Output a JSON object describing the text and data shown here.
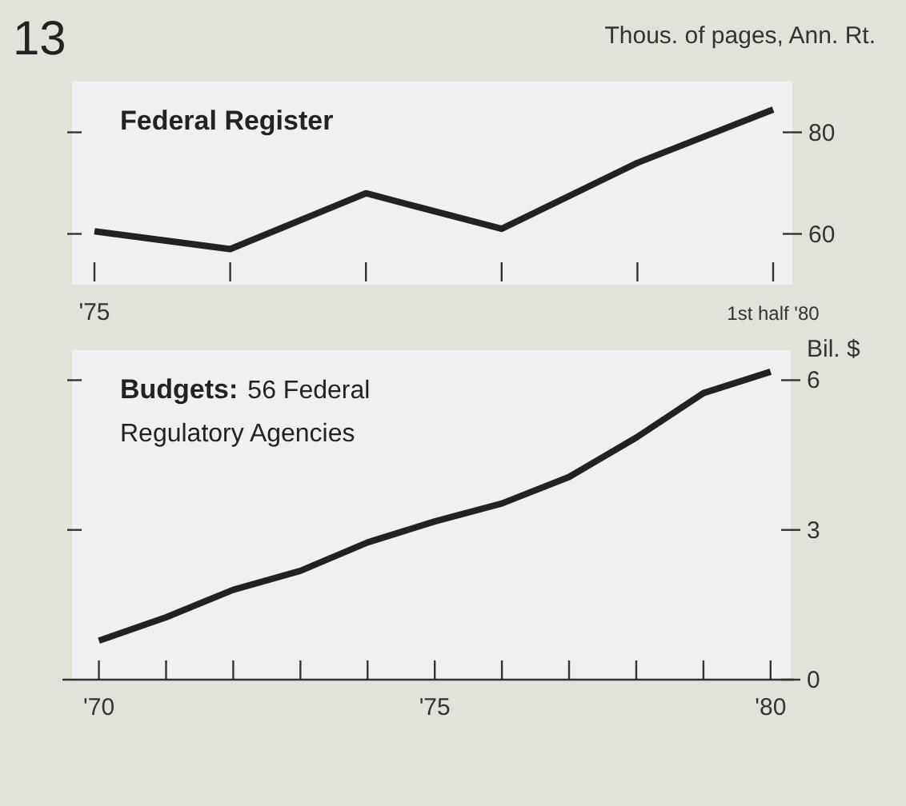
{
  "chart_data": [
    {
      "type": "line",
      "title": "Federal Register",
      "ylabel": "Thous. of pages, Ann. Rt.",
      "annotations": [
        "13"
      ],
      "categories": [
        "'75",
        null,
        null,
        null,
        null,
        "1st half '80"
      ],
      "series": [
        {
          "color": "#222222",
          "values": [
            60.5,
            57,
            68,
            61,
            74,
            84.5
          ]
        }
      ],
      "ylim": [
        50,
        90
      ],
      "yticks": [
        60,
        80
      ],
      "grid": false
    },
    {
      "type": "line",
      "title": "Budgets:",
      "subtitle": "56 Federal Regulatory Agencies",
      "ylabel": "Bil. $",
      "x": [
        1970,
        1971,
        1972,
        1973,
        1974,
        1975,
        1976,
        1977,
        1978,
        1979,
        1980
      ],
      "series": [
        {
          "color": "#222222",
          "values": [
            0.78,
            1.25,
            1.8,
            2.18,
            2.75,
            3.17,
            3.53,
            4.06,
            4.85,
            5.74,
            6.17
          ]
        }
      ],
      "xlim": [
        1969.6,
        1980.3
      ],
      "xticks": [
        {
          "value": 1970,
          "label": "'70"
        },
        {
          "value": 1971,
          "label": null
        },
        {
          "value": 1972,
          "label": null
        },
        {
          "value": 1973,
          "label": null
        },
        {
          "value": 1974,
          "label": null
        },
        {
          "value": 1975,
          "label": "'75"
        },
        {
          "value": 1976,
          "label": null
        },
        {
          "value": 1977,
          "label": null
        },
        {
          "value": 1978,
          "label": null
        },
        {
          "value": 1979,
          "label": null
        },
        {
          "value": 1980,
          "label": "'80"
        }
      ],
      "ylim": [
        0,
        6.6
      ],
      "yticks": [
        0,
        3,
        6
      ],
      "grid": false
    }
  ]
}
